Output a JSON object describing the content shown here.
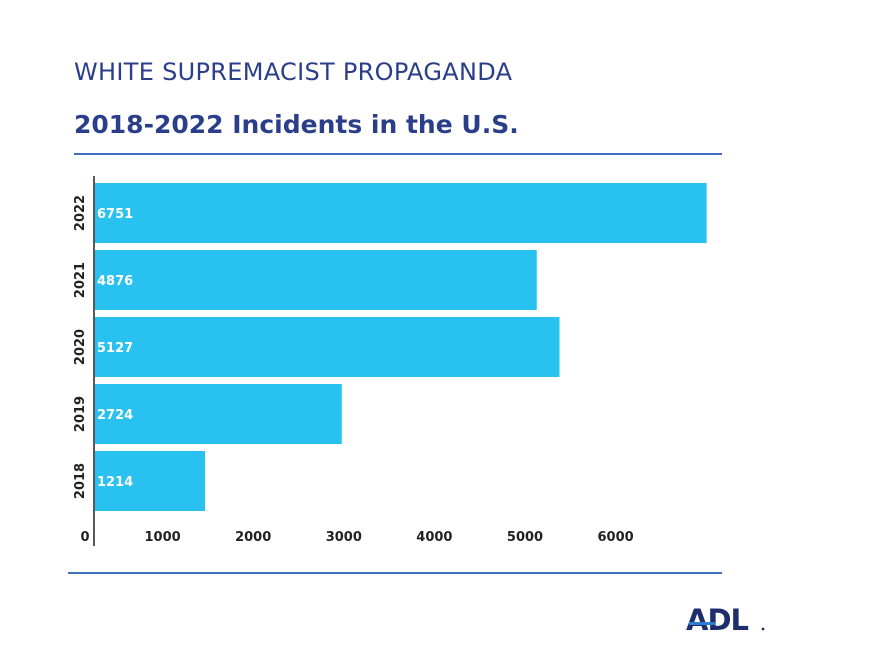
{
  "header": {
    "title": "WHITE SUPREMACIST PROPAGANDA",
    "subtitle": "2018-2022 Incidents in the U.S."
  },
  "logo": {
    "text": "ADL",
    "color": "#1e2d6b",
    "accent": "#2a7fd4"
  },
  "colors": {
    "bar": "#29c2f0",
    "title": "#2b3e8a",
    "rule": "#3f6fbe",
    "axis": "#222222"
  },
  "chart_data": {
    "type": "bar",
    "orientation": "horizontal",
    "title": "WHITE SUPREMACIST PROPAGANDA",
    "subtitle": "2018-2022 Incidents in the U.S.",
    "categories": [
      "2022",
      "2021",
      "2020",
      "2019",
      "2018"
    ],
    "values": [
      6751,
      4876,
      5127,
      2724,
      1214
    ],
    "data_labels": [
      "6751",
      "4876",
      "5127",
      "2724",
      "1214"
    ],
    "x_ticks": [
      0,
      1000,
      2000,
      3000,
      4000,
      5000,
      6000
    ],
    "x_tick_labels": [
      "0",
      "1000",
      "2000",
      "3000",
      "4000",
      "5000",
      "6000"
    ],
    "xlim": [
      0,
      6800
    ],
    "xlabel": "",
    "ylabel": "",
    "grid": false,
    "legend": "none"
  }
}
